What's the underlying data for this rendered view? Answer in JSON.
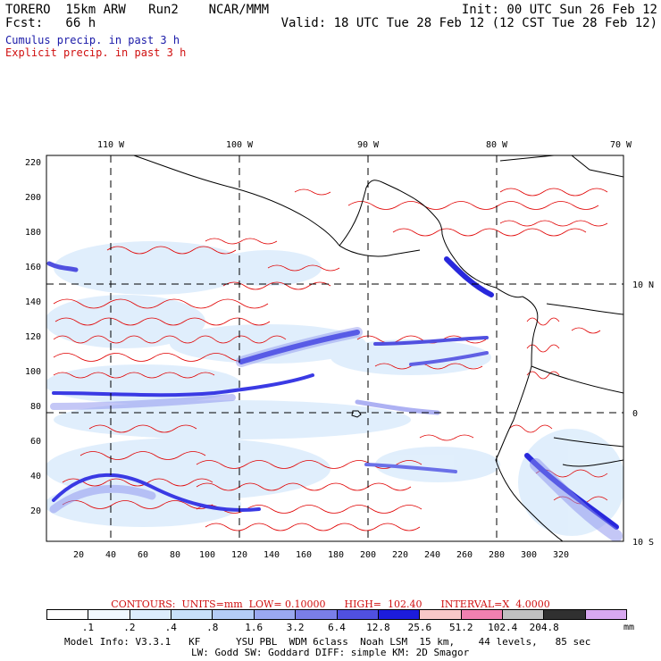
{
  "header": {
    "left_line1": "TORERO  15km ARW   Run2    NCAR/MMM",
    "left_line2": "Fcst:   66 h",
    "right_line1": "Init: 00 UTC Sun 26 Feb 12",
    "right_line2": "Valid: 18 UTC Tue 28 Feb 12 (12 CST Tue 28 Feb 12)"
  },
  "legend": {
    "cumulus": "Cumulus precip. in past 3 h",
    "explicit": "Explicit precip. in past 3 h",
    "cumulus_color": "#1a1aa8",
    "explicit_color": "#d01010"
  },
  "map": {
    "lon_labels": [
      "110 W",
      "100 W",
      "90 W",
      "80 W",
      "70 W"
    ],
    "lat_labels": [
      "10 N",
      "0",
      "10 S"
    ],
    "y_ticks": [
      "220",
      "200",
      "180",
      "160",
      "140",
      "120",
      "100",
      "80",
      "60",
      "40",
      "20"
    ],
    "x_ticks": [
      "20",
      "40",
      "60",
      "80",
      "100",
      "120",
      "140",
      "160",
      "180",
      "200",
      "220",
      "240",
      "260",
      "280",
      "300",
      "320"
    ],
    "coast_color": "#000000",
    "contour_color": "#e00000",
    "grid_style": "dashed"
  },
  "contour_info": "CONTOURS:  UNITS=mm  LOW= 0.10000      HIGH=  102.40      INTERVAL=X  4.0000",
  "colorbar": {
    "colors": [
      "#ffffff",
      "#f0f8ff",
      "#dcecfc",
      "#c8e0fa",
      "#b4ccf6",
      "#9aa8f0",
      "#7a7ee8",
      "#5050e0",
      "#1c1cdc",
      "#f8c8c8",
      "#f080b0",
      "#c0c0c0",
      "#303030",
      "#d8a8f0"
    ],
    "labels": [
      ".1",
      ".2",
      ".4",
      ".8",
      "1.6",
      "3.2",
      "6.4",
      "12.8",
      "25.6",
      "51.2",
      "102.4",
      "204.8"
    ],
    "unit": "mm"
  },
  "model_info": {
    "line1": "Model Info: V3.3.1   KF      YSU PBL  WDM 6class  Noah LSM  15 km,    44 levels,   85 sec",
    "line2": "LW: Godd SW: Goddard DIFF: simple KM: 2D Smagor"
  }
}
